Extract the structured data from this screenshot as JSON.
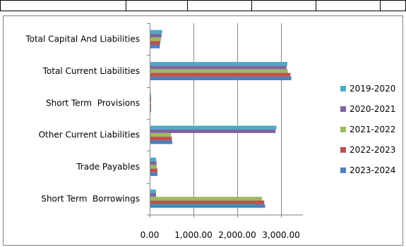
{
  "chart_data": {
    "type": "bar",
    "orientation": "horizontal",
    "categories": [
      "Total Capital And Liabilities",
      "Total Current Liabilities",
      "Short Term  Provisions",
      "Other Current Liabilities",
      "Trade Payables",
      "Short Term  Borrowings"
    ],
    "series": [
      {
        "name": "2019-2020",
        "color": "#4bacc6",
        "values": [
          270,
          3130,
          5,
          2880,
          130,
          130
        ]
      },
      {
        "name": "2020-2021",
        "color": "#8064a2",
        "values": [
          255,
          3110,
          5,
          2860,
          140,
          130
        ]
      },
      {
        "name": "2021-2022",
        "color": "#9bbb59",
        "values": [
          245,
          3140,
          5,
          470,
          150,
          2550
        ]
      },
      {
        "name": "2022-2023",
        "color": "#c0504d",
        "values": [
          225,
          3200,
          5,
          490,
          160,
          2600
        ]
      },
      {
        "name": "2023-2024",
        "color": "#4f81bd",
        "values": [
          215,
          3220,
          5,
          500,
          160,
          2620
        ]
      }
    ],
    "xlim": [
      0,
      3500
    ],
    "xticks": [
      0,
      1000,
      2000,
      3000
    ],
    "xtick_labels": [
      "0.00",
      "1,000.00",
      "2,000.00",
      "3,000.00"
    ],
    "grid": true,
    "legend_position": "right",
    "title": "",
    "xlabel": "",
    "ylabel": ""
  }
}
